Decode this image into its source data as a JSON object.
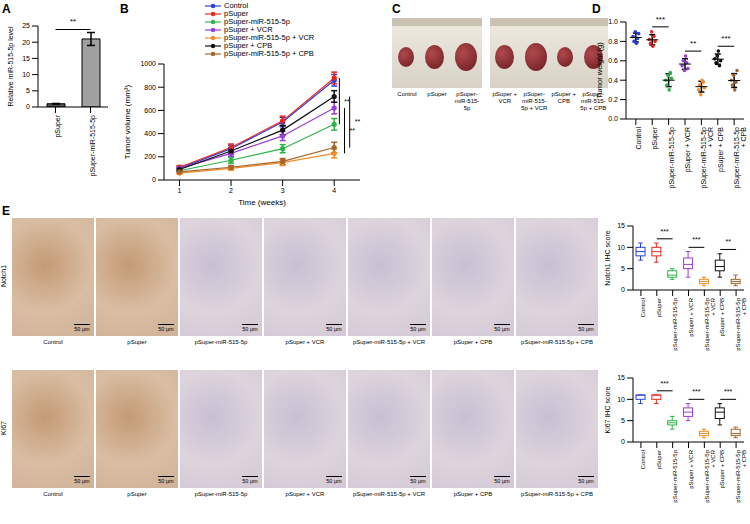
{
  "chart_data": [
    {
      "panel": "A",
      "type": "bar",
      "y_label": "Relative miR-515-5p level",
      "categories": [
        "pSuper",
        "pSuper-miR-515-5p"
      ],
      "values": [
        1,
        21
      ],
      "errors": [
        0.08,
        2
      ],
      "colors": [
        "#555555",
        "#a0a0a0"
      ],
      "ylim": [
        0,
        25
      ],
      "yticks": [
        0,
        5,
        10,
        15,
        20,
        25
      ],
      "annotations": [
        {
          "text": "**",
          "between": [
            0,
            1
          ]
        }
      ]
    },
    {
      "panel": "B",
      "type": "line",
      "x_label": "Time (weeks)",
      "y_label": "Tumor volume (mm³)",
      "x": [
        1,
        2,
        3,
        4
      ],
      "xlim": [
        0.7,
        4.5
      ],
      "xticks": [
        1,
        2,
        3,
        4
      ],
      "ylim": [
        0,
        1000
      ],
      "yticks": [
        0,
        200,
        400,
        600,
        800,
        1000
      ],
      "marker": "circle",
      "series": [
        {
          "name": "Control",
          "color": "#2a3fe0",
          "values": [
            100,
            270,
            500,
            860
          ],
          "errors": [
            15,
            30,
            40,
            50
          ]
        },
        {
          "name": "pSuper",
          "color": "#e8271f",
          "values": [
            110,
            280,
            510,
            880
          ],
          "errors": [
            15,
            30,
            40,
            50
          ]
        },
        {
          "name": "pSuper-miR-515-5p",
          "color": "#2db34a",
          "values": [
            80,
            170,
            270,
            480
          ],
          "errors": [
            10,
            25,
            35,
            50
          ]
        },
        {
          "name": "pSuper + VCR",
          "color": "#9a3cd6",
          "values": [
            100,
            230,
            380,
            620
          ],
          "errors": [
            12,
            25,
            40,
            50
          ]
        },
        {
          "name": "pSuper-miR-515-5p + VCR",
          "color": "#f28c28",
          "values": [
            60,
            100,
            150,
            230
          ],
          "errors": [
            10,
            15,
            25,
            40
          ]
        },
        {
          "name": "pSuper + CPB",
          "color": "#111111",
          "values": [
            90,
            250,
            430,
            720
          ],
          "errors": [
            12,
            25,
            40,
            50
          ]
        },
        {
          "name": "pSuper-miR-515-5p + CPB",
          "color": "#a5652a",
          "values": [
            70,
            110,
            160,
            280
          ],
          "errors": [
            10,
            15,
            25,
            45
          ]
        }
      ],
      "annotations": [
        {
          "text": "**",
          "between": [
            1,
            2
          ]
        },
        {
          "text": "**",
          "between": [
            3,
            4
          ]
        },
        {
          "text": "**",
          "between": [
            5,
            6
          ]
        }
      ]
    },
    {
      "panel": "D",
      "type": "scatter",
      "y_label": "Tumor weight (g)",
      "categories": [
        "Control",
        "pSuper",
        "pSuper-miR-515-5p",
        "pSuper + VCR",
        "pSuper-miR-515-5p + VCR",
        "pSuper + CPB",
        "pSuper-miR-515-5p + CPB"
      ],
      "values": [
        [
          0.85,
          0.8,
          0.9,
          0.78,
          0.83,
          0.88
        ],
        [
          0.82,
          0.78,
          0.9,
          0.75,
          0.85,
          0.8
        ],
        [
          0.4,
          0.35,
          0.45,
          0.3,
          0.48,
          0.42
        ],
        [
          0.55,
          0.6,
          0.5,
          0.65,
          0.58,
          0.52
        ],
        [
          0.3,
          0.35,
          0.25,
          0.4,
          0.38,
          0.32
        ],
        [
          0.62,
          0.58,
          0.65,
          0.7,
          0.55,
          0.6
        ],
        [
          0.4,
          0.35,
          0.45,
          0.3,
          0.38,
          0.5
        ]
      ],
      "colors": [
        "#2a3fe0",
        "#e8271f",
        "#2db34a",
        "#9a3cd6",
        "#f28c28",
        "#111111",
        "#a5652a"
      ],
      "ylim": [
        0,
        1
      ],
      "yticks": [
        {
          "value": 0,
          "label": "0.0"
        },
        {
          "value": 0.2,
          "label": "0.2"
        },
        {
          "value": 0.4,
          "label": "0.4"
        },
        {
          "value": 0.6,
          "label": "0.6"
        },
        {
          "value": 0.8,
          "label": "0.8"
        },
        {
          "value": 1,
          "label": "1.0"
        }
      ],
      "annotations": [
        {
          "text": "***",
          "between": [
            1,
            2
          ]
        },
        {
          "text": "**",
          "between": [
            3,
            4
          ]
        },
        {
          "text": "***",
          "between": [
            5,
            6
          ]
        }
      ]
    },
    {
      "type": "box",
      "y_label": "Notch1 IHC score",
      "categories": [
        "Control",
        "pSuper",
        "pSuper-miR-515-5p",
        "pSuper + VCR",
        "pSuper-miR-515-5p + VCR",
        "pSuper + CPB",
        "pSuper-miR-515-5p + CPB"
      ],
      "values": [
        [
          7,
          8,
          9,
          10,
          11
        ],
        [
          6.5,
          8,
          9,
          10,
          11
        ],
        [
          2.5,
          3,
          3.5,
          4.5,
          5
        ],
        [
          3,
          5,
          6,
          7.5,
          9
        ],
        [
          1,
          1.5,
          2,
          2.5,
          3
        ],
        [
          3,
          4.5,
          5.5,
          7,
          8.5
        ],
        [
          1,
          1.5,
          2,
          2.5,
          3.5
        ]
      ],
      "colors": [
        "#2a3fe0",
        "#e8271f",
        "#2db34a",
        "#9a3cd6",
        "#f28c28",
        "#111111",
        "#a5652a"
      ],
      "ylim": [
        0,
        15
      ],
      "yticks": [
        0,
        5,
        10,
        15
      ],
      "annotations": [
        {
          "text": "***",
          "between": [
            1,
            2
          ]
        },
        {
          "text": "***",
          "between": [
            3,
            4
          ]
        },
        {
          "text": "**",
          "between": [
            5,
            6
          ]
        }
      ]
    },
    {
      "type": "box",
      "y_label": "Ki67 IHC score",
      "categories": [
        "Control",
        "pSuper",
        "pSuper-miR-515-5p",
        "pSuper + VCR",
        "pSuper-miR-515-5p + VCR",
        "pSuper + CPB",
        "pSuper-miR-515-5p + CPB"
      ],
      "values": [
        [
          9,
          10,
          11,
          11,
          11
        ],
        [
          9,
          10,
          11,
          11,
          11
        ],
        [
          3,
          4,
          4.5,
          5,
          6
        ],
        [
          5,
          6,
          7,
          8,
          9
        ],
        [
          1,
          1.5,
          2,
          2.5,
          3
        ],
        [
          4,
          5.5,
          7,
          8,
          9
        ],
        [
          1,
          1.5,
          2,
          3,
          3.5
        ]
      ],
      "colors": [
        "#2a3fe0",
        "#e8271f",
        "#2db34a",
        "#9a3cd6",
        "#f28c28",
        "#111111",
        "#a5652a"
      ],
      "ylim": [
        0,
        15
      ],
      "yticks": [
        0,
        5,
        10,
        15
      ],
      "annotations": [
        {
          "text": "***",
          "between": [
            1,
            2
          ]
        },
        {
          "text": "***",
          "between": [
            3,
            4
          ]
        },
        {
          "text": "***",
          "between": [
            5,
            6
          ]
        }
      ]
    }
  ],
  "photos": {
    "panel": "C",
    "groups": [
      [
        "Control",
        "pSuper",
        "pSuper-miR-515-5p"
      ],
      [
        "pSuper + VCR",
        "pSuper-miR-515-5p + VCR",
        "pSuper + CPB",
        "pSuper-miR-515-5p + CPB"
      ]
    ]
  },
  "ihc": {
    "panel": "E",
    "rows": [
      "Notch1",
      "Ki67"
    ],
    "captions": [
      "Control",
      "pSuper",
      "pSuper-miR-515-5p",
      "pSuper + VCR",
      "pSuper-miR-515-5p + VCR",
      "pSuper + CPB",
      "pSuper-miR-515-5p + CPB"
    ],
    "scale_bar": "50 μm"
  }
}
